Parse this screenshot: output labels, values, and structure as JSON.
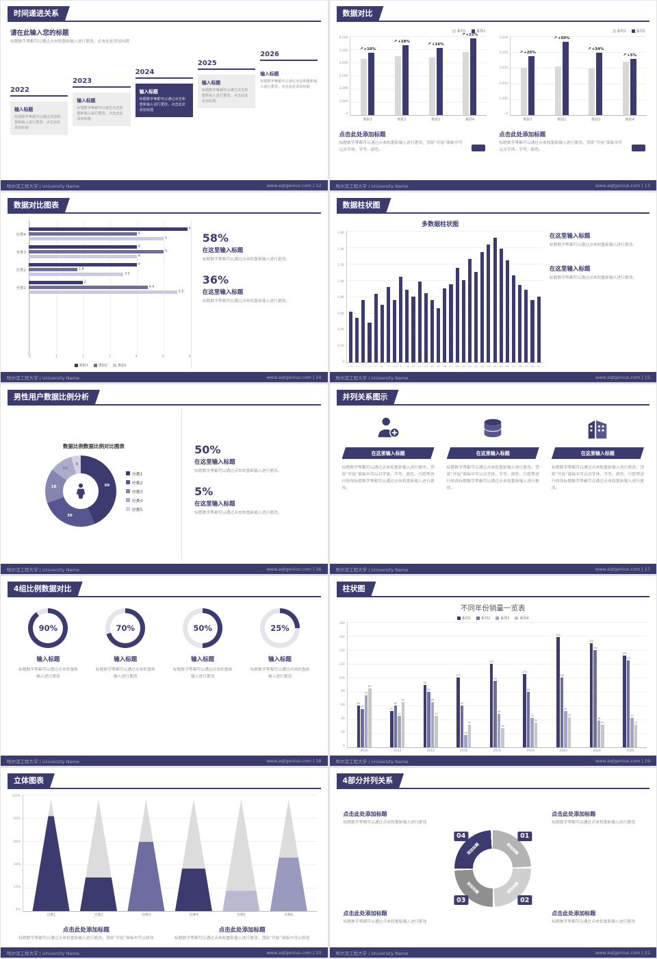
{
  "footer": {
    "left": "哈尔滨工程大学 | University Name",
    "site": "www.aqtgenius.com"
  },
  "colors": {
    "primary": "#3b3b70",
    "mid": "#6d6da0",
    "light": "#a3a3c4",
    "lighter": "#cbcbde",
    "gray_bar": "#d9d9d9"
  },
  "slides": [
    {
      "page": "12",
      "title": "时间递进关系",
      "footer_right": "www.aqtgenius.com | 12",
      "heading": "请在此输入您的标题",
      "heading_body": "标题数字等都可以通过点击和重新输入进行更改，点击此处添加标题",
      "milestones": [
        {
          "year": "2022",
          "label": "输入标题",
          "body": "标题数字等都可以通过点击和重新输入进行更改，点击此处添加标题",
          "style": "gray"
        },
        {
          "year": "2023",
          "label": "输入标题",
          "body": "标题数字等都可以通过点击和重新输入进行更改，点击此处添加标题",
          "style": "gray"
        },
        {
          "year": "2024",
          "label": "输入标题",
          "body": "标题数字等都可以通过点击和重新输入进行更改，点击此处添加标题",
          "style": "dark"
        },
        {
          "year": "2025",
          "label": "输入标题",
          "body": "标题数字等都可以通过点击和重新输入进行更改，点击此处添加标题",
          "style": "gray"
        },
        {
          "year": "2026",
          "label": "输入标题",
          "body": "标题数字等都可以通过点击和重新输入进行更改，点击此处添加标题",
          "style": "plain"
        }
      ]
    },
    {
      "page": "13",
      "title": "数据对比",
      "footer_right": "www.aqtgenius.com | 13",
      "caption_title": "点击此处添加标题",
      "caption_body": "标题数字等都可以通过点击和重新输入进行更改，顶部“开始”面板中可以对字体、字号、颜色。",
      "chart_data": [
        {
          "type": "bar",
          "legend": [
            "系列1",
            "系列2"
          ],
          "categories": [
            "类别1",
            "类别2",
            "类别3",
            "类别4"
          ],
          "series": [
            {
              "name": "系列1",
              "values": [
                4300,
                4500,
                4400,
                4800
              ]
            },
            {
              "name": "系列2",
              "values": [
                4730,
                5310,
                5100,
                5860
              ]
            }
          ],
          "growth": [
            "+10%",
            "+18%",
            "+16%",
            "+22%"
          ],
          "ymax": 6000,
          "yticks": [
            "6,000",
            "5,000",
            "4,000",
            "3,000",
            "2,000",
            "1,000",
            "0"
          ]
        },
        {
          "type": "bar",
          "legend": [
            "系列1",
            "系列2"
          ],
          "categories": [
            "类别1",
            "类别2",
            "类别3",
            "类别4"
          ],
          "series": [
            {
              "name": "系列1",
              "values": [
                3000,
                3100,
                2950,
                3400
              ]
            },
            {
              "name": "系列2",
              "values": [
                3750,
                4650,
                3950,
                3570
              ]
            }
          ],
          "growth": [
            "+25%",
            "+50%",
            "+34%",
            "+5%"
          ],
          "ymax": 5000,
          "yticks": [
            "5,000",
            "4,000",
            "3,000",
            "2,000",
            "1,000",
            "0"
          ]
        }
      ]
    },
    {
      "page": "14",
      "title": "数据对比图表",
      "footer_right": "www.aqtgenius.com | 14",
      "chart_data": {
        "type": "bar-horizontal",
        "categories": [
          "分类4",
          "分类3",
          "分类2",
          "分类1"
        ],
        "series": [
          {
            "name": "类别3",
            "values": [
              6,
              4,
              4,
              2
            ]
          },
          {
            "name": "类别2",
            "values": [
              4,
              5,
              1.8,
              4.4
            ]
          },
          {
            "name": "类别1",
            "values": [
              5,
              4,
              3.5,
              5.5
            ]
          }
        ],
        "xmax": 6,
        "xticks": [
          "0",
          "1",
          "2",
          "3",
          "4",
          "5",
          "6"
        ],
        "legend": [
          "类别3",
          "类别2",
          "类别1"
        ]
      },
      "stats": [
        {
          "pct": "58%",
          "title": "在这里输入标题",
          "body": "标题数字等都可以通过点击和重新输入进行更改。"
        },
        {
          "pct": "36%",
          "title": "在这里输入标题",
          "body": "标题数字等都可以通过点击和重新输入进行更改。"
        }
      ]
    },
    {
      "page": "15",
      "title": "数据柱状图",
      "footer_right": "www.aqtgenius.com | 15",
      "chart_data": {
        "type": "bar",
        "title": "多数据柱状图",
        "categories": [
          "1",
          "2",
          "3",
          "4",
          "5",
          "6",
          "7",
          "8",
          "9",
          "10",
          "11",
          "12",
          "13",
          "14",
          "15",
          "16",
          "17",
          "18",
          "19",
          "20",
          "21",
          "22",
          "23",
          "24",
          "25",
          "26",
          "27",
          "28",
          "29",
          "30",
          "31"
        ],
        "values": [
          620,
          540,
          760,
          480,
          830,
          700,
          920,
          760,
          1040,
          880,
          800,
          980,
          840,
          760,
          660,
          900,
          950,
          1150,
          1000,
          1260,
          1100,
          1340,
          1430,
          1520,
          1380,
          1240,
          1060,
          940,
          880,
          760,
          800
        ],
        "ymax": 1600,
        "yticks": [
          "1.6K",
          "1.4K",
          "1.2K",
          "1.0K",
          "0.8K",
          "0.6K",
          "0.4K",
          "0.2K",
          "0"
        ]
      },
      "stats": [
        {
          "title": "在这里输入标题",
          "body": "标题数字等都可以通过点击和重新输入进行更改。"
        },
        {
          "title": "在这里输入标题",
          "body": "标题数字等都可以通过点击和重新输入进行更改。"
        }
      ]
    },
    {
      "page": "16",
      "title": "男性用户数据比例分析",
      "footer_right": "www.aqtgenius.com | 16",
      "chart_title": "数据比例数据比例对比图表",
      "chart_data": {
        "type": "pie",
        "labels": [
          "分类1",
          "分类2",
          "分类3",
          "分类4",
          "分类5"
        ],
        "values": [
          50,
          30,
          18,
          12,
          5
        ],
        "colors": [
          "#3b3b70",
          "#565690",
          "#8585b0",
          "#ababcb",
          "#d2d2e2"
        ]
      },
      "stats": [
        {
          "pct": "50%",
          "title": "在这里输入标题",
          "body": "标题数字等都可以通过点击和重新输入进行更改。"
        },
        {
          "pct": "5%",
          "title": "在这里输入标题",
          "body": "标题数字等都可以通过点击和重新输入进行更改。"
        }
      ]
    },
    {
      "page": "17",
      "title": "并列关系图示",
      "footer_right": "www.aqtgenius.com | 17",
      "columns": [
        {
          "icon": "medical-person-icon",
          "banner": "在这里输入标题",
          "body": "标题数字等都可以通过点击和重新输入进行更改，顶部“开始”面板中可以对字体、字号、颜色、行距等进行修改标题数字等都可以通过点击和重新输入进行更改。"
        },
        {
          "icon": "3d-box-icon",
          "banner": "在这里输入标题",
          "body": "标题数字等都可以通过点击和重新输入进行更改，顶部“开始”面板中可以对字体、字号、颜色、行距等进行修改标题数字等都可以通过点击和重新输入进行更改。"
        },
        {
          "icon": "building-icon",
          "banner": "在这里输入标题",
          "body": "标题数字等都可以通过点击和重新输入进行更改，顶部“开始”面板中可以对字体、字号、颜色、行距等进行修改标题数字等都可以通过点击和重新输入进行更改。"
        }
      ]
    },
    {
      "page": "18",
      "title": "4组比例数据对比",
      "footer_right": "www.aqtgenius.com | 18",
      "chart_data": {
        "type": "pie",
        "items": [
          {
            "pct": 90,
            "label": "90%",
            "title": "输入标题",
            "body": "标题数字等都可以通过点击和重新输入进行更改"
          },
          {
            "pct": 70,
            "label": "70%",
            "title": "输入标题",
            "body": "标题数字等都可以通过点击和重新输入进行更改"
          },
          {
            "pct": 50,
            "label": "50%",
            "title": "输入标题",
            "body": "标题数字等都可以通过点击和重新输入进行更改"
          },
          {
            "pct": 25,
            "label": "25%",
            "title": "输入标题",
            "body": "标题数字等都可以通过点击和重新输入进行更改"
          }
        ]
      }
    },
    {
      "page": "19",
      "title": "柱状图",
      "footer_right": "www.aqtgenius.com | 19",
      "chart_data": {
        "type": "bar",
        "title": "不同年份销量一览表",
        "legend": [
          "系列1",
          "系列2",
          "系列3",
          "系列4"
        ],
        "categories": [
          "2010",
          "2012",
          "2014",
          "2016",
          "2018",
          "2020",
          "2022",
          "2024",
          "2026"
        ],
        "series": [
          {
            "name": "系列1",
            "values": [
              60,
              52,
              90,
              100,
              120,
              105,
              158,
              150,
              132
            ]
          },
          {
            "name": "系列2",
            "values": [
              55,
              60,
              80,
              60,
              95,
              80,
              100,
              140,
              125
            ]
          },
          {
            "name": "系列3",
            "values": [
              75,
              45,
              65,
              18,
              48,
              42,
              52,
              38,
              42
            ]
          },
          {
            "name": "系列4",
            "values": [
              85,
              65,
              45,
              32,
              28,
              35,
              43,
              32,
              32
            ]
          }
        ],
        "ymax": 180,
        "yticks": [
          "180",
          "160",
          "140",
          "120",
          "100",
          "80",
          "60",
          "40",
          "20",
          "0"
        ]
      }
    },
    {
      "page": "20",
      "title": "立体图表",
      "footer_right": "www.aqtgenius.com | 20",
      "chart_data": {
        "type": "bar",
        "categories": [
          "分类1",
          "分类2",
          "分类3",
          "分类4",
          "分类5",
          "分类6"
        ],
        "values": [
          85,
          30,
          62,
          38,
          18,
          48
        ],
        "colors": [
          "#3b3b70",
          "#3b3b70",
          "#6d6da0",
          "#3b3b70",
          "#b9b9d2",
          "#9a9abf"
        ],
        "yticks": [
          "100%",
          "80%",
          "60%",
          "40%",
          "20%",
          "0%"
        ]
      },
      "captions": [
        {
          "title": "点击此处添加标题",
          "body": "标题数字等都可以通过点击和重新输入进行更改，顶部“开始”面板中可以修改"
        },
        {
          "title": "点击此处添加标题",
          "body": "标题数字等都可以通过点击和重新输入进行更改，顶部“开始”面板中可以修改"
        }
      ]
    },
    {
      "page": "21",
      "title": "4部分并列关系",
      "footer_right": "www.aqtgenius.com | 21",
      "wheel": {
        "segments": [
          {
            "num": "01",
            "label": "添加标题",
            "color": "#b3b3b3"
          },
          {
            "num": "02",
            "label": "添加标题",
            "color": "#cfcfcf"
          },
          {
            "num": "03",
            "label": "添加标题",
            "color": "#8f8f8f"
          },
          {
            "num": "04",
            "label": "添加标题",
            "color": "#3b3b70"
          }
        ]
      },
      "blocks": [
        {
          "title": "点击此处添加标题",
          "body": "标题数字等都可以通过点击和重新输入进行更改"
        },
        {
          "title": "点击此处添加标题",
          "body": "标题数字等都可以通过点击和重新输入进行更改"
        },
        {
          "title": "点击此处添加标题",
          "body": "标题数字等都可以通过点击和重新输入进行更改"
        },
        {
          "title": "点击此处添加标题",
          "body": "标题数字等都可以通过点击和重新输入进行更改"
        }
      ]
    }
  ]
}
